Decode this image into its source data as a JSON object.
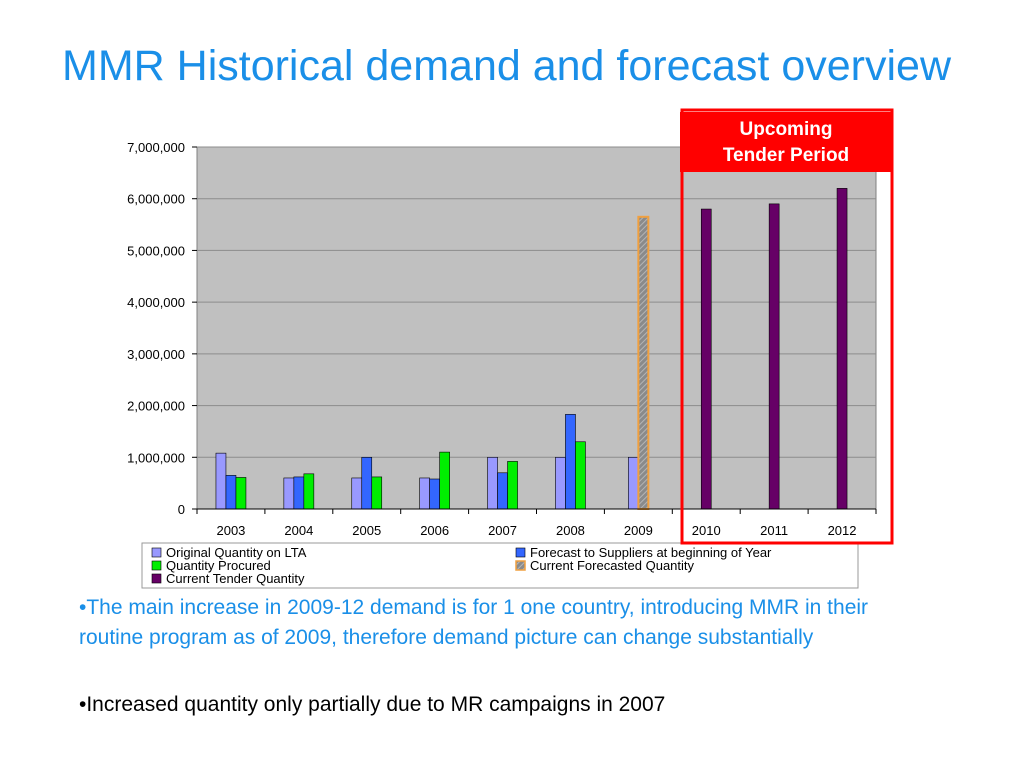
{
  "slide": {
    "title": "MMR Historical demand and forecast overview",
    "tender_label_line1": "Upcoming",
    "tender_label_line2": "Tender Period",
    "bullets": [
      "•The main increase in 2009-12 demand is for 1 one country, introducing MMR in their routine program as of 2009, therefore demand picture can change substantially",
      "•Increased quantity only partially due to MR campaigns in 2007"
    ]
  },
  "colors": {
    "title": "#1a8fe8",
    "plot_background": "#c0c0c0",
    "tender_highlight": "#ff0000"
  },
  "chart_data": {
    "type": "bar",
    "categories": [
      "2003",
      "2004",
      "2005",
      "2006",
      "2007",
      "2008",
      "2009",
      "2010",
      "2011",
      "2012"
    ],
    "ylim": [
      0,
      7000000
    ],
    "yticks": [
      "0",
      "1,000,000",
      "2,000,000",
      "3,000,000",
      "4,000,000",
      "5,000,000",
      "6,000,000",
      "7,000,000"
    ],
    "ytick_values": [
      0,
      1000000,
      2000000,
      3000000,
      4000000,
      5000000,
      6000000,
      7000000
    ],
    "grid": true,
    "legend_position": "bottom",
    "series": [
      {
        "name": "Original Quantity on LTA",
        "color": "#9999ff",
        "values": [
          1080000,
          600000,
          600000,
          600000,
          1000000,
          1000000,
          1000000,
          null,
          null,
          null
        ]
      },
      {
        "name": "Forecast to Suppliers at beginning of Year",
        "color": "#3366ff",
        "values": [
          650000,
          620000,
          1000000,
          580000,
          700000,
          1830000,
          null,
          null,
          null,
          null
        ]
      },
      {
        "name": "Quantity Procured",
        "color": "#00ee00",
        "values": [
          610000,
          680000,
          620000,
          1100000,
          920000,
          1300000,
          null,
          null,
          null,
          null
        ]
      },
      {
        "name": "Current Forecasted Quantity",
        "color": "#999999",
        "outline": "#f0a040",
        "values": [
          null,
          null,
          null,
          null,
          null,
          null,
          5650000,
          null,
          null,
          null
        ]
      },
      {
        "name": "Current Tender Quantity",
        "color": "#660066",
        "values": [
          null,
          null,
          null,
          null,
          null,
          null,
          null,
          5800000,
          5900000,
          6200000
        ]
      }
    ]
  }
}
